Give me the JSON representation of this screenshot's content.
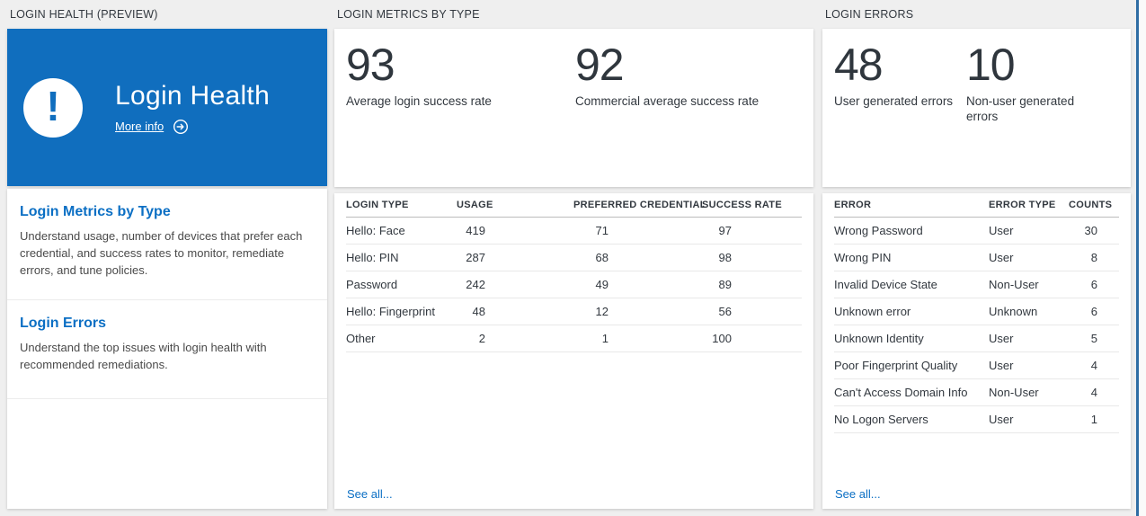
{
  "colors": {
    "background": "#efefef",
    "tile_blue": "#106ebe",
    "link_blue": "#0b6fc4",
    "ink": "#32383f",
    "blade_divider_blue": "#2e6da4"
  },
  "panels": {
    "health": {
      "header": "LOGIN HEALTH (PREVIEW)",
      "tile": {
        "title": "Login Health",
        "more_info_label": "More info",
        "icon": "exclamation-icon"
      },
      "sections": [
        {
          "title": "Login Metrics by Type",
          "description": "Understand usage, number of devices that prefer each credential, and success rates to monitor, remediate errors, and tune policies."
        },
        {
          "title": "Login Errors",
          "description": "Understand the top issues with login health with recommended remediations."
        }
      ]
    },
    "metrics": {
      "header": "LOGIN METRICS BY TYPE",
      "stats": [
        {
          "value": "93",
          "label": "Average login success rate"
        },
        {
          "value": "92",
          "label": "Commercial average success rate"
        }
      ],
      "table": {
        "columns": [
          "LOGIN TYPE",
          "USAGE",
          "PREFERRED CREDENTIAL",
          "SUCCESS RATE"
        ],
        "rows": [
          [
            "Hello: Face",
            "419",
            "71",
            "97"
          ],
          [
            "Hello: PIN",
            "287",
            "68",
            "98"
          ],
          [
            "Password",
            "242",
            "49",
            "89"
          ],
          [
            "Hello: Fingerprint",
            "48",
            "12",
            "56"
          ],
          [
            "Other",
            "2",
            "1",
            "100"
          ]
        ]
      },
      "see_all": "See all..."
    },
    "errors": {
      "header": "LOGIN ERRORS",
      "stats": [
        {
          "value": "48",
          "label": "User generated errors"
        },
        {
          "value": "10",
          "label": "Non-user generated errors"
        }
      ],
      "table": {
        "columns": [
          "ERROR",
          "ERROR TYPE",
          "COUNTS"
        ],
        "rows": [
          [
            "Wrong Password",
            "User",
            "30"
          ],
          [
            "Wrong PIN",
            "User",
            "8"
          ],
          [
            "Invalid Device State",
            "Non-User",
            "6"
          ],
          [
            "Unknown error",
            "Unknown",
            "6"
          ],
          [
            "Unknown Identity",
            "User",
            "5"
          ],
          [
            "Poor Fingerprint Quality",
            "User",
            "4"
          ],
          [
            "Can't Access Domain Info",
            "Non-User",
            "4"
          ],
          [
            "No Logon Servers",
            "User",
            "1"
          ]
        ]
      },
      "see_all": "See all..."
    }
  }
}
